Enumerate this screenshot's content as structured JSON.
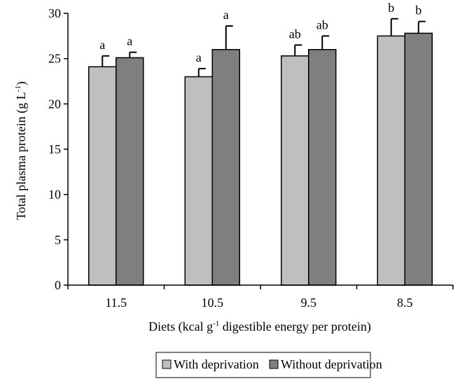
{
  "chart_data": {
    "type": "bar",
    "title": "",
    "xlabel": {
      "main": "Diets (kcal g",
      "sup": "-1",
      "rest": " digestible energy per protein)"
    },
    "ylabel": {
      "main": "Total plasma protein  (g L",
      "sup": "-1",
      "rest": ")"
    },
    "categories": [
      "11.5",
      "10.5",
      "9.5",
      "8.5"
    ],
    "ylim": [
      0,
      30
    ],
    "yticks": [
      0,
      5,
      10,
      15,
      20,
      25,
      30
    ],
    "series": [
      {
        "name": "With deprivation",
        "color": "#bfbfbf",
        "values": [
          24.1,
          23.0,
          25.3,
          27.5
        ],
        "error": [
          1.2,
          0.9,
          1.2,
          1.9
        ],
        "labels": [
          "a",
          "a",
          "ab",
          "b"
        ]
      },
      {
        "name": "Without deprivation",
        "color": "#7f7f7f",
        "values": [
          25.1,
          26.0,
          26.0,
          27.8
        ],
        "error": [
          0.6,
          2.6,
          1.5,
          1.3
        ],
        "labels": [
          "a",
          "a",
          "ab",
          "b"
        ]
      }
    ],
    "grid": false,
    "legend": "bottom-center"
  }
}
